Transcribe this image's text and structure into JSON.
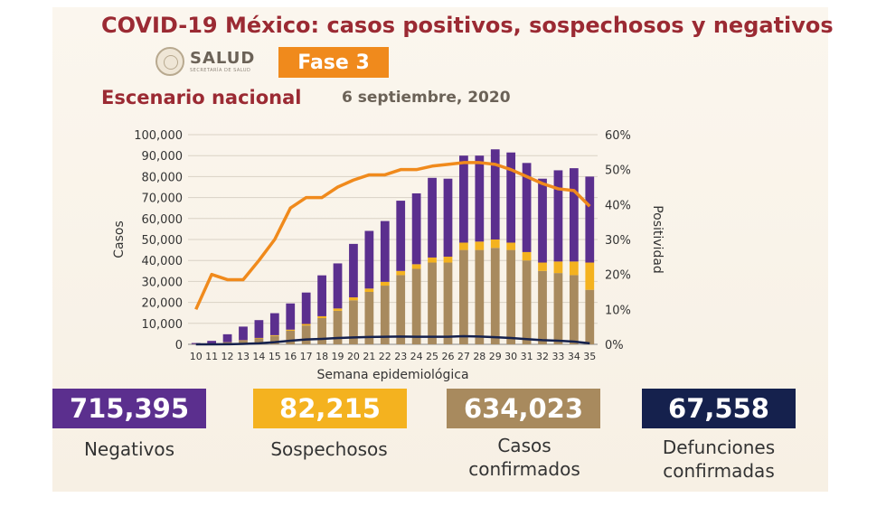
{
  "header": {
    "title": "COVID-19 México: casos positivos, sospechosos y negativos",
    "logo_text": "SALUD",
    "logo_subtext": "SECRETARÍA DE SALUD",
    "phase_badge": "Fase 3",
    "subtitle": "Escenario nacional",
    "date": "6 septiembre, 2020"
  },
  "colors": {
    "title": "#9b2a33",
    "negativos": "#5b2f8e",
    "sospechosos": "#f4b21f",
    "confirmados": "#a88a5e",
    "defunciones": "#15214d",
    "positividad": "#f08a1c",
    "phase_badge": "#f08a1c"
  },
  "chart_data": {
    "type": "bar",
    "stacked": true,
    "xlabel": "Semana epidemiológica",
    "ylabel": "Casos",
    "y2label": "Positividad",
    "ylim": [
      0,
      100000
    ],
    "y2lim": [
      0,
      60
    ],
    "y_ticks": [
      "0",
      "10,000",
      "20,000",
      "30,000",
      "40,000",
      "50,000",
      "60,000",
      "70,000",
      "80,000",
      "90,000",
      "100,000"
    ],
    "y2_ticks": [
      "0%",
      "10%",
      "20%",
      "30%",
      "40%",
      "50%",
      "60%"
    ],
    "categories": [
      "10",
      "11",
      "12",
      "13",
      "14",
      "15",
      "16",
      "17",
      "18",
      "19",
      "20",
      "21",
      "22",
      "23",
      "24",
      "25",
      "26",
      "27",
      "28",
      "29",
      "30",
      "31",
      "32",
      "33",
      "34",
      "35"
    ],
    "series": [
      {
        "key": "confirmados",
        "values": [
          100,
          400,
          900,
          1800,
          2800,
          4000,
          6500,
          9000,
          12500,
          16000,
          21000,
          25000,
          28000,
          33000,
          36000,
          39000,
          39000,
          45000,
          45000,
          46000,
          45000,
          40000,
          35000,
          34000,
          33000,
          26000
        ]
      },
      {
        "key": "sospechosos",
        "values": [
          20,
          50,
          100,
          150,
          250,
          350,
          500,
          700,
          900,
          1100,
          1400,
          1600,
          1800,
          2000,
          2200,
          2400,
          2800,
          3500,
          4000,
          4000,
          3500,
          4000,
          4000,
          5500,
          6500,
          13000
        ]
      },
      {
        "key": "negativos",
        "values": [
          500,
          1200,
          3800,
          6500,
          8500,
          10500,
          12500,
          15000,
          19500,
          21500,
          25500,
          27500,
          29000,
          33500,
          33800,
          38000,
          37200,
          41500,
          41000,
          43000,
          43000,
          42500,
          40000,
          43500,
          44500,
          41000
        ]
      }
    ],
    "line_series": [
      {
        "key": "positividad",
        "axis": "right",
        "values": [
          10,
          20,
          18.5,
          18.5,
          24,
          30,
          39,
          42,
          42,
          45,
          47,
          48.5,
          48.5,
          50,
          50,
          51,
          51.5,
          52,
          52,
          51.5,
          50,
          48,
          46,
          44.5,
          44,
          39.5
        ]
      },
      {
        "key": "defunciones",
        "axis": "left",
        "values": [
          0,
          0,
          50,
          200,
          500,
          1000,
          1700,
          2300,
          2600,
          3000,
          3300,
          3500,
          3600,
          3700,
          3600,
          3600,
          3600,
          3900,
          3700,
          3400,
          3000,
          2500,
          2000,
          1700,
          1300,
          500
        ]
      }
    ]
  },
  "stats": [
    {
      "key": "negativos",
      "value": "715,395",
      "label_lines": [
        "Negativos"
      ]
    },
    {
      "key": "sospechosos",
      "value": "82,215",
      "label_lines": [
        "Sospechosos"
      ]
    },
    {
      "key": "confirmados",
      "value": "634,023",
      "label_lines": [
        "Casos",
        "confirmados"
      ]
    },
    {
      "key": "defunciones",
      "value": "67,558",
      "label_lines": [
        "Defunciones",
        "confirmadas"
      ]
    }
  ]
}
